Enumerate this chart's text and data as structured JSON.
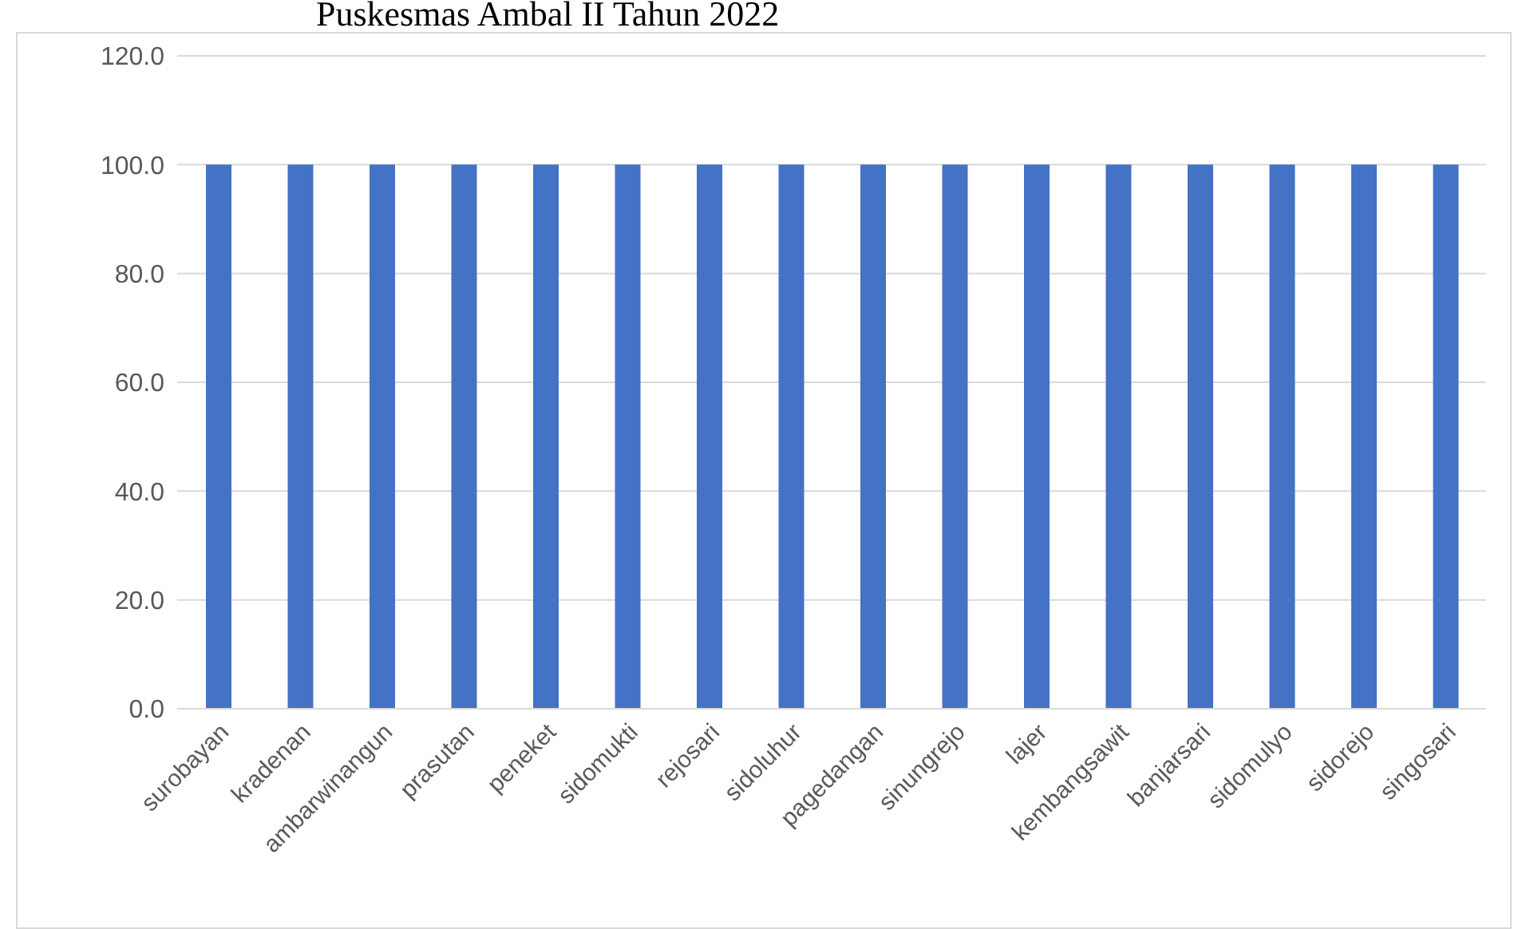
{
  "chart_data": {
    "type": "bar",
    "title": "Puskesmas Ambal II Tahun 2022",
    "categories": [
      "surobayan",
      "kradenan",
      "ambarwinangun",
      "prasutan",
      "peneket",
      "sidomukti",
      "rejosari",
      "sidoluhur",
      "pagedangan",
      "sinungrejo",
      "lajer",
      "kembangsawit",
      "banjarsari",
      "sidomulyo",
      "sidorejo",
      "singosari"
    ],
    "values": [
      100,
      100,
      100,
      100,
      100,
      100,
      100,
      100,
      100,
      100,
      100,
      100,
      100,
      100,
      100,
      100
    ],
    "color": "#4472c4",
    "ylim": [
      0,
      120
    ],
    "yticks": [
      {
        "value": 0,
        "label": "0.0"
      },
      {
        "value": 20,
        "label": "20.0"
      },
      {
        "value": 40,
        "label": "40.0"
      },
      {
        "value": 60,
        "label": "60.0"
      },
      {
        "value": 80,
        "label": "80.0"
      },
      {
        "value": 100,
        "label": "100.0"
      },
      {
        "value": 120,
        "label": "120.0"
      }
    ],
    "grid": "y"
  }
}
